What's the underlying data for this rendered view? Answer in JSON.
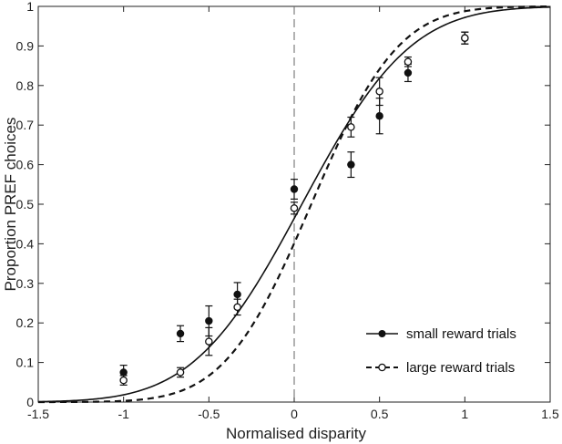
{
  "chart_data": {
    "type": "line",
    "title": "",
    "xlabel": "Normalised disparity",
    "ylabel": "Proportion PREF choices",
    "xlim": [
      -1.5,
      1.5
    ],
    "ylim": [
      0,
      1
    ],
    "x_ticks": [
      "-1.5",
      "-1",
      "-0.5",
      "0",
      "0.5",
      "1",
      "1.5"
    ],
    "y_ticks": [
      "0",
      "0.1",
      "0.2",
      "0.3",
      "0.4",
      "0.5",
      "0.6",
      "0.7",
      "0.8",
      "0.9",
      "1"
    ],
    "grid": false,
    "reference_line": {
      "x": 0,
      "style": "dashed"
    },
    "legend": {
      "placement": "bottom-right"
    },
    "series": [
      {
        "name": "small reward trials",
        "marker": "filled-circle",
        "line_style": "solid",
        "x": [
          -1,
          -0.667,
          -0.5,
          -0.333,
          0,
          0.333,
          0.5,
          0.667,
          1
        ],
        "y": [
          0.075,
          0.173,
          0.205,
          0.272,
          0.538,
          0.6,
          0.723,
          0.832,
          0.92
        ],
        "err": [
          0.018,
          0.02,
          0.038,
          0.03,
          0.025,
          0.032,
          0.045,
          0.022,
          0.015
        ],
        "fit": {
          "mu": 0.045,
          "sigma": 0.5
        }
      },
      {
        "name": "large reward trials",
        "marker": "open-circle",
        "line_style": "dashed",
        "x": [
          -1,
          -0.667,
          -0.5,
          -0.333,
          0,
          0.333,
          0.5,
          0.667,
          1
        ],
        "y": [
          0.055,
          0.075,
          0.153,
          0.24,
          0.49,
          0.695,
          0.785,
          0.86,
          0.92
        ],
        "err": [
          0.012,
          0.012,
          0.035,
          0.02,
          0.015,
          0.025,
          0.035,
          0.012,
          0.015
        ],
        "fit": {
          "mu": 0.1,
          "sigma": 0.4
        }
      }
    ]
  }
}
